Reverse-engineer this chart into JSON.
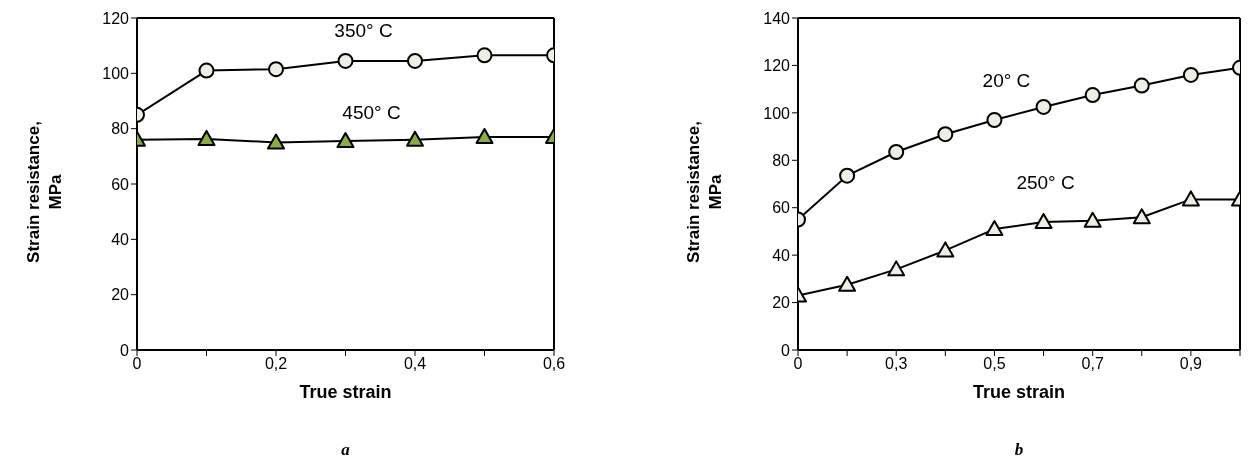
{
  "chart_data": [
    {
      "type": "line",
      "xlabel": "True strain",
      "ylabel": "Strain resistance, MPa",
      "x": [
        0,
        0.1,
        0.2,
        0.3,
        0.4,
        0.5,
        0.6
      ],
      "xlim": [
        0,
        0.6
      ],
      "xticks": [
        0,
        {
          "value": 0.1,
          "label": null
        },
        {
          "value": 0.2,
          "label": "0,2"
        },
        {
          "value": 0.3,
          "label": null
        },
        {
          "value": 0.4,
          "label": "0,4"
        },
        {
          "value": 0.5,
          "label": null
        },
        {
          "value": 0.6,
          "label": "0,6"
        }
      ],
      "ylim": [
        0,
        120
      ],
      "yticks": [
        0,
        20,
        40,
        60,
        80,
        100,
        120
      ],
      "grid": false,
      "line_style": "solid",
      "series": [
        {
          "name": "350° C",
          "color": "#eeeee4",
          "marker": "circle",
          "values": [
            85,
            101,
            101.5,
            104.5,
            104.5,
            106.5,
            106.5
          ]
        },
        {
          "name": "450° C",
          "color": "#8aac48",
          "marker": "triangle",
          "values": [
            76,
            76.3,
            75,
            75.5,
            76,
            77,
            77
          ]
        }
      ],
      "annotations": [
        "a"
      ]
    },
    {
      "type": "line",
      "xlabel": "True strain",
      "ylabel": "Strain resistance, MPa",
      "categories": [
        "0",
        null,
        "0,3",
        null,
        "0,5",
        null,
        "0,7",
        null,
        "0,9",
        null
      ],
      "ylim": [
        0,
        140
      ],
      "yticks": [
        0,
        20,
        40,
        60,
        80,
        100,
        120,
        140
      ],
      "grid": false,
      "line_style": "solid",
      "series": [
        {
          "name": "20° C",
          "color": "#eeeee4",
          "marker": "circle",
          "values": [
            55,
            73.5,
            83.5,
            91,
            97,
            102.5,
            107.5,
            111.5,
            116,
            119
          ]
        },
        {
          "name": "250° C",
          "color": "#eeeee4",
          "marker": "triangle",
          "values": [
            23,
            27.5,
            34,
            42,
            51,
            54,
            54.5,
            56,
            63.5,
            63.5
          ]
        }
      ],
      "annotations": [
        "b"
      ]
    }
  ]
}
